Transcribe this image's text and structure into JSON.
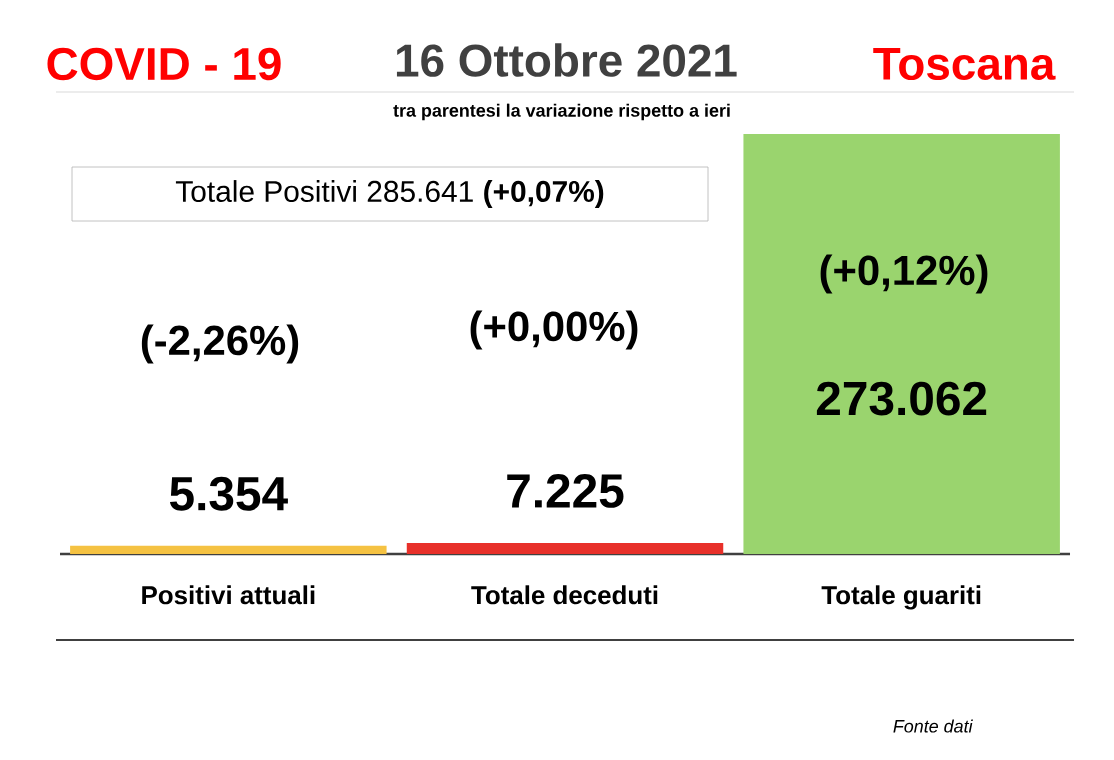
{
  "chart_data": {
    "type": "bar",
    "title": "COVID - 19",
    "subtitle": "16 Ottobre 2021",
    "categories": [
      "Positivi attuali",
      "Totale deceduti",
      "Totale guariti"
    ],
    "values": [
      5354,
      7225,
      273062
    ],
    "colors": [
      "#f5c242",
      "#e8302a",
      "#9ad46e"
    ],
    "value_labels": [
      "5.354",
      "7.225",
      "273.062"
    ],
    "tick_labels": "x",
    "annotations": [
      "Toscana",
      "tra parentesi la variazione rispetto a ieri",
      "Totale Positivi   285.641 **(+0,07%)**",
      "(-2,26%)",
      "(+0,00%)",
      "(+0,12%)",
      "*Fonte dati*"
    ]
  }
}
